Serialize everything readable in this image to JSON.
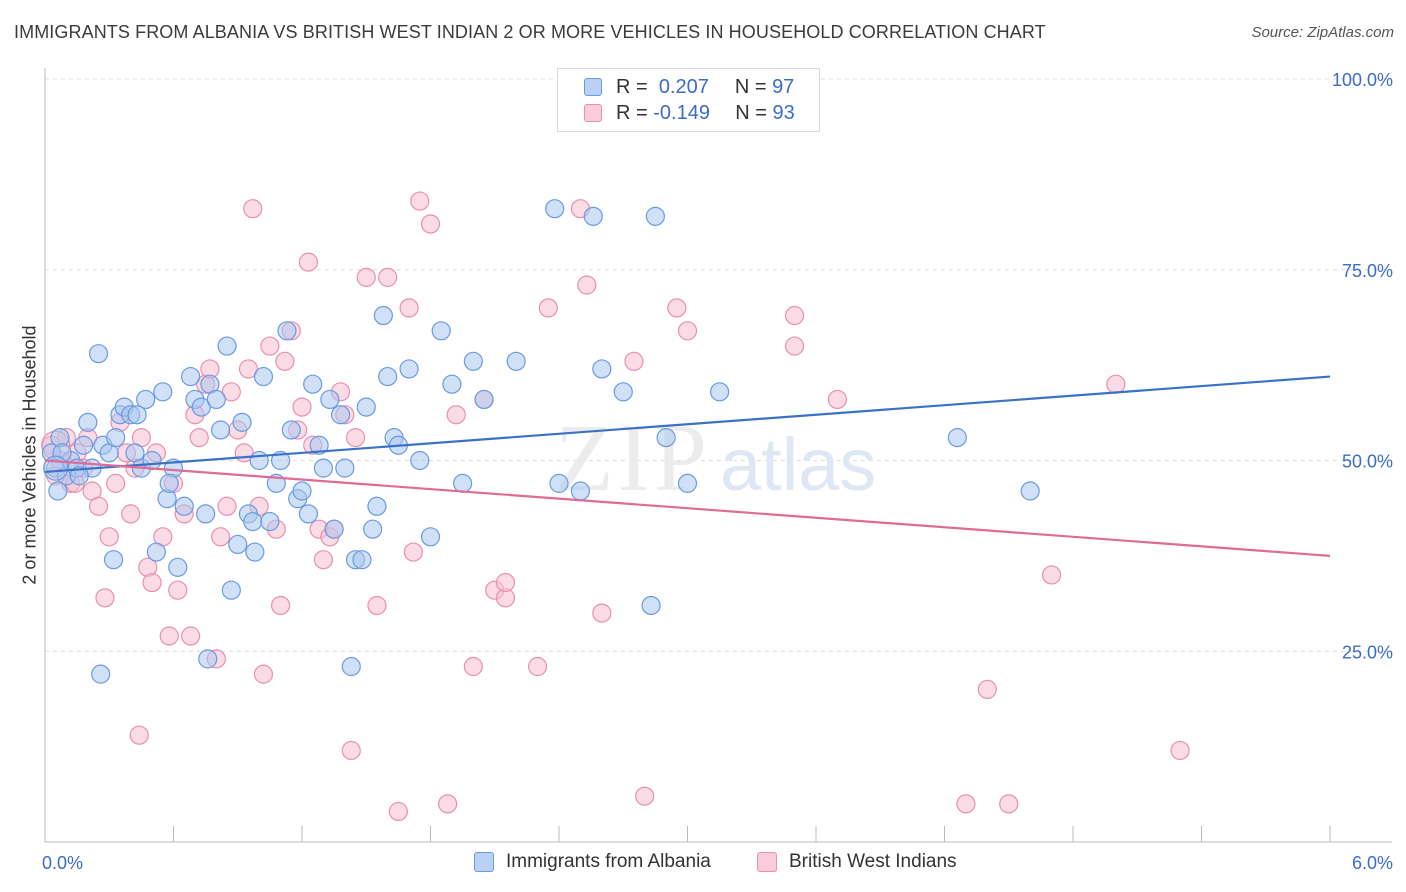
{
  "title": "IMMIGRANTS FROM ALBANIA VS BRITISH WEST INDIAN 2 OR MORE VEHICLES IN HOUSEHOLD CORRELATION CHART",
  "source": "Source: ZipAtlas.com",
  "watermark": {
    "zip": "ZIP",
    "atlas": "atlas"
  },
  "legend": {
    "r_label": "R =",
    "n_label": "N =",
    "rows": [
      {
        "r": "0.207",
        "n": "97",
        "color": "#6a9be0"
      },
      {
        "r": "-0.149",
        "n": "93",
        "color": "#ef8fb0"
      }
    ]
  },
  "colors": {
    "blue_fill": "#a9c7f0",
    "blue_stroke": "#6a9be0",
    "blue_line": "#3a72c8",
    "pink_fill": "#f7bfd1",
    "pink_stroke": "#ea8fae",
    "pink_line": "#e06b95",
    "tick_text": "#3b6cc7"
  },
  "chart_data": {
    "type": "scatter",
    "title": "IMMIGRANTS FROM ALBANIA VS BRITISH WEST INDIAN 2 OR MORE VEHICLES IN HOUSEHOLD CORRELATION CHART",
    "xlabel": "",
    "ylabel": "2 or more Vehicles in Household",
    "xlim": [
      0,
      6
    ],
    "ylim": [
      0,
      100
    ],
    "x_tick_labels": [
      "0.0%",
      "6.0%"
    ],
    "y_ticks": [
      25,
      50,
      75,
      100
    ],
    "y_tick_labels": [
      "25.0%",
      "50.0%",
      "75.0%",
      "100.0%"
    ],
    "grid": true,
    "legend_position": "top-center",
    "series": [
      {
        "name": "Immigrants from Albania",
        "r": 0.207,
        "n": 97,
        "trend": [
          [
            0,
            48.5
          ],
          [
            6,
            61.0
          ]
        ],
        "points": [
          [
            0.03,
            51
          ],
          [
            0.05,
            49
          ],
          [
            0.07,
            53
          ],
          [
            0.1,
            48
          ],
          [
            0.12,
            50
          ],
          [
            0.15,
            49
          ],
          [
            0.18,
            52
          ],
          [
            0.2,
            55
          ],
          [
            0.22,
            49
          ],
          [
            0.25,
            64
          ],
          [
            0.27,
            52
          ],
          [
            0.3,
            51
          ],
          [
            0.32,
            37
          ],
          [
            0.35,
            56
          ],
          [
            0.37,
            57
          ],
          [
            0.4,
            56
          ],
          [
            0.42,
            51
          ],
          [
            0.45,
            49
          ],
          [
            0.47,
            58
          ],
          [
            0.5,
            50
          ],
          [
            0.52,
            38
          ],
          [
            0.55,
            59
          ],
          [
            0.57,
            45
          ],
          [
            0.6,
            49
          ],
          [
            0.62,
            36
          ],
          [
            0.65,
            44
          ],
          [
            0.68,
            61
          ],
          [
            0.7,
            58
          ],
          [
            0.73,
            57
          ],
          [
            0.75,
            43
          ],
          [
            0.77,
            60
          ],
          [
            0.8,
            58
          ],
          [
            0.82,
            54
          ],
          [
            0.85,
            65
          ],
          [
            0.87,
            33
          ],
          [
            0.9,
            39
          ],
          [
            0.92,
            55
          ],
          [
            0.95,
            43
          ],
          [
            0.97,
            42
          ],
          [
            1.0,
            50
          ],
          [
            1.02,
            61
          ],
          [
            1.05,
            42
          ],
          [
            1.08,
            47
          ],
          [
            1.1,
            50
          ],
          [
            1.13,
            67
          ],
          [
            1.15,
            54
          ],
          [
            1.18,
            45
          ],
          [
            1.2,
            46
          ],
          [
            1.23,
            43
          ],
          [
            1.25,
            60
          ],
          [
            1.28,
            52
          ],
          [
            1.3,
            49
          ],
          [
            1.33,
            58
          ],
          [
            1.35,
            41
          ],
          [
            1.38,
            56
          ],
          [
            1.4,
            49
          ],
          [
            1.43,
            23
          ],
          [
            1.45,
            37
          ],
          [
            1.48,
            37
          ],
          [
            1.5,
            57
          ],
          [
            1.53,
            41
          ],
          [
            1.55,
            44
          ],
          [
            1.58,
            69
          ],
          [
            1.6,
            61
          ],
          [
            1.63,
            53
          ],
          [
            1.65,
            52
          ],
          [
            1.7,
            62
          ],
          [
            1.75,
            50
          ],
          [
            1.8,
            40
          ],
          [
            1.85,
            67
          ],
          [
            1.9,
            60
          ],
          [
            1.95,
            47
          ],
          [
            2.0,
            63
          ],
          [
            2.05,
            58
          ],
          [
            2.2,
            63
          ],
          [
            2.4,
            47
          ],
          [
            2.5,
            46
          ],
          [
            2.6,
            62
          ],
          [
            2.7,
            59
          ],
          [
            2.83,
            31
          ],
          [
            2.85,
            82
          ],
          [
            2.9,
            53
          ],
          [
            3.0,
            47
          ],
          [
            3.15,
            59
          ],
          [
            4.26,
            53
          ],
          [
            4.6,
            46
          ],
          [
            2.38,
            83
          ],
          [
            2.56,
            82
          ],
          [
            0.06,
            46
          ],
          [
            0.08,
            51
          ],
          [
            0.16,
            48
          ],
          [
            0.26,
            22
          ],
          [
            0.33,
            53
          ],
          [
            0.43,
            56
          ],
          [
            0.58,
            47
          ],
          [
            0.76,
            24
          ],
          [
            0.98,
            38
          ]
        ]
      },
      {
        "name": "British West Indians",
        "r": -0.149,
        "n": 93,
        "trend": [
          [
            0,
            50.0
          ],
          [
            6,
            37.5
          ]
        ],
        "points": [
          [
            0.03,
            52
          ],
          [
            0.05,
            48
          ],
          [
            0.07,
            50
          ],
          [
            0.1,
            53
          ],
          [
            0.12,
            47
          ],
          [
            0.15,
            51
          ],
          [
            0.18,
            49
          ],
          [
            0.2,
            53
          ],
          [
            0.22,
            46
          ],
          [
            0.25,
            44
          ],
          [
            0.28,
            32
          ],
          [
            0.3,
            40
          ],
          [
            0.33,
            47
          ],
          [
            0.35,
            55
          ],
          [
            0.38,
            51
          ],
          [
            0.4,
            43
          ],
          [
            0.42,
            49
          ],
          [
            0.45,
            53
          ],
          [
            0.48,
            36
          ],
          [
            0.5,
            34
          ],
          [
            0.52,
            51
          ],
          [
            0.55,
            40
          ],
          [
            0.58,
            27
          ],
          [
            0.6,
            47
          ],
          [
            0.62,
            33
          ],
          [
            0.65,
            43
          ],
          [
            0.68,
            27
          ],
          [
            0.7,
            56
          ],
          [
            0.72,
            53
          ],
          [
            0.75,
            60
          ],
          [
            0.77,
            62
          ],
          [
            0.8,
            24
          ],
          [
            0.82,
            40
          ],
          [
            0.85,
            44
          ],
          [
            0.87,
            59
          ],
          [
            0.9,
            54
          ],
          [
            0.93,
            51
          ],
          [
            0.95,
            62
          ],
          [
            0.97,
            83
          ],
          [
            1.0,
            44
          ],
          [
            1.02,
            22
          ],
          [
            1.05,
            65
          ],
          [
            1.08,
            41
          ],
          [
            1.1,
            31
          ],
          [
            1.12,
            63
          ],
          [
            1.15,
            67
          ],
          [
            1.18,
            54
          ],
          [
            1.2,
            57
          ],
          [
            1.23,
            76
          ],
          [
            1.25,
            52
          ],
          [
            1.28,
            41
          ],
          [
            1.3,
            37
          ],
          [
            1.33,
            40
          ],
          [
            1.35,
            41
          ],
          [
            1.38,
            59
          ],
          [
            1.4,
            56
          ],
          [
            1.43,
            12
          ],
          [
            1.45,
            53
          ],
          [
            1.5,
            74
          ],
          [
            1.55,
            31
          ],
          [
            1.6,
            74
          ],
          [
            1.65,
            4
          ],
          [
            1.7,
            70
          ],
          [
            1.72,
            38
          ],
          [
            1.75,
            84
          ],
          [
            1.8,
            81
          ],
          [
            1.88,
            5
          ],
          [
            1.92,
            56
          ],
          [
            2.0,
            23
          ],
          [
            2.05,
            58
          ],
          [
            2.1,
            33
          ],
          [
            2.15,
            32
          ],
          [
            2.3,
            23
          ],
          [
            2.35,
            70
          ],
          [
            2.5,
            83
          ],
          [
            2.53,
            73
          ],
          [
            2.6,
            30
          ],
          [
            2.75,
            63
          ],
          [
            2.8,
            6
          ],
          [
            2.95,
            70
          ],
          [
            3.0,
            67
          ],
          [
            3.5,
            65
          ],
          [
            3.5,
            69
          ],
          [
            3.7,
            58
          ],
          [
            4.3,
            5
          ],
          [
            4.4,
            20
          ],
          [
            4.5,
            5
          ],
          [
            4.7,
            35
          ],
          [
            5.0,
            60
          ],
          [
            5.3,
            12
          ],
          [
            0.14,
            47
          ],
          [
            0.44,
            14
          ],
          [
            2.15,
            34
          ]
        ]
      }
    ]
  },
  "bottom_legend": [
    "Immigrants from Albania",
    "British West Indians"
  ]
}
